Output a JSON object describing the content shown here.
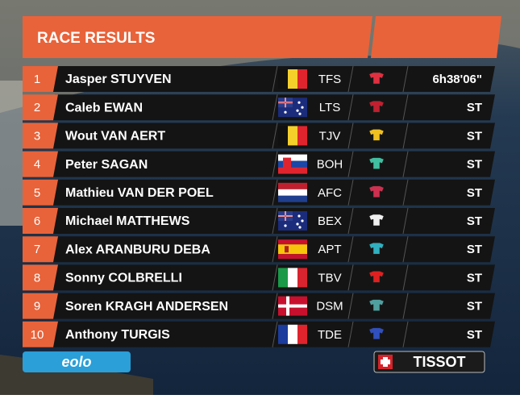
{
  "header": {
    "title": "RACE RESULTS"
  },
  "results": [
    {
      "rank": "1",
      "name": "Jasper STUYVEN",
      "team": "TFS",
      "time": "6h38'06\""
    },
    {
      "rank": "2",
      "name": "Caleb EWAN",
      "team": "LTS",
      "time": "ST"
    },
    {
      "rank": "3",
      "name": "Wout VAN AERT",
      "team": "TJV",
      "time": "ST"
    },
    {
      "rank": "4",
      "name": "Peter SAGAN",
      "team": "BOH",
      "time": "ST"
    },
    {
      "rank": "5",
      "name": "Mathieu VAN DER POEL",
      "team": "AFC",
      "time": "ST"
    },
    {
      "rank": "6",
      "name": "Michael MATTHEWS",
      "team": "BEX",
      "time": "ST"
    },
    {
      "rank": "7",
      "name": "Alex ARANBURU DEBA",
      "team": "APT",
      "time": "ST"
    },
    {
      "rank": "8",
      "name": "Sonny COLBRELLI",
      "team": "TBV",
      "time": "ST"
    },
    {
      "rank": "9",
      "name": "Soren KRAGH ANDERSEN",
      "team": "DSM",
      "time": "ST"
    },
    {
      "rank": "10",
      "name": "Anthony TURGIS",
      "team": "TDE",
      "time": "ST"
    }
  ],
  "sponsors": {
    "left": "eolo",
    "right": "TISSOT"
  }
}
